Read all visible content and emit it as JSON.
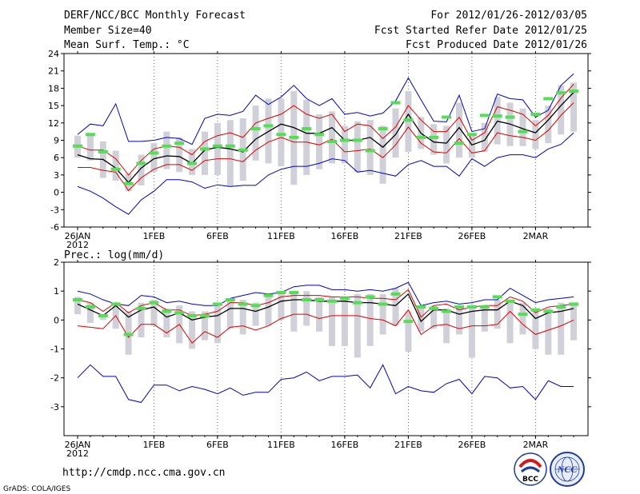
{
  "header": {
    "left": [
      "DERF/NCC/BCC Monthly Forecast",
      "Member Size=40",
      "Mean Surf. Temp.: °C"
    ],
    "right": [
      "For 2012/01/26-2012/03/05",
      "Fcst Started Refer Date 2012/01/25",
      "Fcst Produced Date 2012/01/26"
    ]
  },
  "footer": {
    "url": "http://cmdp.ncc.cma.gov.cn",
    "grads": "GrADS: COLA/IGES",
    "logo_bcc": "BCC",
    "logo_ncc": "NCC"
  },
  "colors": {
    "max_min": "#0000cc",
    "spread": "#dd0000",
    "mean": "#000000",
    "box": "#d0d0d8",
    "obs": "#55dd55"
  },
  "chart_data": [
    {
      "type": "line",
      "title": "Mean Surf. Temp.: °C",
      "ylim": [
        -6,
        24
      ],
      "yticks": [
        -6,
        -3,
        0,
        3,
        6,
        9,
        12,
        15,
        18,
        21,
        24
      ],
      "x_day_range": [
        0,
        39
      ],
      "xticks": [
        {
          "day": 0,
          "label": "26JAN",
          "sub": "2012"
        },
        {
          "day": 6,
          "label": "1FEB",
          "sub": ""
        },
        {
          "day": 11,
          "label": "6FEB",
          "sub": ""
        },
        {
          "day": 16,
          "label": "11FEB",
          "sub": ""
        },
        {
          "day": 21,
          "label": "16FEB",
          "sub": ""
        },
        {
          "day": 26,
          "label": "21FEB",
          "sub": ""
        },
        {
          "day": 31,
          "label": "26FEB",
          "sub": ""
        },
        {
          "day": 36,
          "label": "2MAR",
          "sub": ""
        }
      ],
      "series": [
        {
          "name": "max",
          "role": "max_min",
          "values": [
            10,
            11.8,
            11.5,
            15.3,
            8.8,
            8.8,
            9,
            9.5,
            9.3,
            8.3,
            12.8,
            13.5,
            13.3,
            14,
            16.8,
            15.2,
            16.5,
            18.5,
            16.2,
            15,
            16.2,
            13.5,
            13.8,
            13.2,
            13.7,
            15.8,
            19.8,
            16,
            12.3,
            12.2,
            16.8,
            10.5,
            11,
            17,
            16.2,
            16,
            13,
            14.2,
            18.5,
            20.5
          ]
        },
        {
          "name": "spread-upper",
          "role": "spread",
          "values": [
            8,
            7.3,
            7.3,
            5.8,
            3,
            5.5,
            7.5,
            8,
            7.8,
            6.5,
            8.8,
            9.8,
            10.3,
            9.5,
            12,
            12.8,
            13.5,
            15,
            13.5,
            12.8,
            13.5,
            10.5,
            11.8,
            11.5,
            9.3,
            11.3,
            15,
            12.5,
            10.5,
            10.5,
            13,
            9,
            10.3,
            14.8,
            14.2,
            13.5,
            11.5,
            13.3,
            16.3,
            18.7
          ]
        },
        {
          "name": "mean",
          "role": "mean",
          "values": [
            6.5,
            5.8,
            5.7,
            4.2,
            1.7,
            4.2,
            5.8,
            6.3,
            6.2,
            5,
            7.3,
            7.8,
            7.5,
            7,
            9.2,
            10.5,
            11.8,
            11.2,
            10.2,
            10.2,
            11.2,
            9,
            9,
            9.5,
            7.8,
            10,
            13.5,
            10.2,
            8.7,
            8.5,
            11.2,
            8.2,
            9,
            12.3,
            11.8,
            11,
            10.3,
            12.5,
            15,
            17.3
          ]
        },
        {
          "name": "spread-lower",
          "role": "spread",
          "values": [
            4.3,
            4.3,
            3.8,
            3.5,
            0.3,
            2.5,
            4,
            4.8,
            4.8,
            3.8,
            5.5,
            5.8,
            5.8,
            5.3,
            7.3,
            8.7,
            9.5,
            8.7,
            8.7,
            8.2,
            9.2,
            7,
            7.2,
            7.5,
            6,
            8.2,
            11.3,
            8.5,
            7,
            6.8,
            9.3,
            6.8,
            7.2,
            10.3,
            9.8,
            9.5,
            9,
            10.7,
            13.3,
            15.5
          ]
        },
        {
          "name": "min",
          "role": "max_min",
          "values": [
            1,
            0.2,
            -1,
            -2.5,
            -3.8,
            -1.3,
            0.2,
            2.2,
            2.2,
            1.8,
            0.7,
            1.3,
            1,
            1.2,
            1.2,
            3,
            4,
            4.5,
            4.5,
            5,
            5.8,
            5.5,
            3.5,
            3.8,
            3.3,
            2.8,
            4.8,
            5.5,
            4.5,
            4.5,
            2.8,
            5.8,
            4.5,
            6,
            6.5,
            6.5,
            6,
            7.5,
            8.3,
            10.3
          ]
        }
      ],
      "box_ranges": [
        [
          6,
          9.8
        ],
        [
          5.5,
          10.2
        ],
        [
          2.5,
          8.8
        ],
        [
          2,
          7.2
        ],
        [
          0.2,
          3.2
        ],
        [
          1.2,
          6.5
        ],
        [
          3.5,
          8.5
        ],
        [
          4,
          10.5
        ],
        [
          3.5,
          9.5
        ],
        [
          3,
          7.5
        ],
        [
          3,
          10.5
        ],
        [
          3,
          12
        ],
        [
          1,
          12.5
        ],
        [
          2,
          12.8
        ],
        [
          5.5,
          15
        ],
        [
          5,
          16.2
        ],
        [
          4.5,
          16.2
        ],
        [
          1.3,
          17.5
        ],
        [
          3,
          16
        ],
        [
          4,
          13.5
        ],
        [
          5,
          14
        ],
        [
          5,
          11.5
        ],
        [
          3.5,
          12.3
        ],
        [
          3,
          12.5
        ],
        [
          1.5,
          11.5
        ],
        [
          6,
          14.5
        ],
        [
          7,
          17.5
        ],
        [
          7.5,
          13
        ],
        [
          6.5,
          11.8
        ],
        [
          5,
          11.5
        ],
        [
          6,
          15.5
        ],
        [
          6,
          10
        ],
        [
          7,
          12
        ],
        [
          8.3,
          16.5
        ],
        [
          8,
          15.5
        ],
        [
          8,
          14.5
        ],
        [
          7.5,
          12.5
        ],
        [
          8.5,
          15
        ],
        [
          10,
          18.5
        ],
        [
          10.5,
          19
        ]
      ],
      "obs_values": [
        8,
        10,
        7,
        4,
        1.5,
        5,
        6.8,
        8,
        8.5,
        5,
        7.5,
        8,
        8,
        7.3,
        11,
        11.5,
        10,
        9.5,
        11,
        10,
        8.8,
        9,
        9,
        7.2,
        11,
        15.5,
        12.5,
        9.5,
        9.5,
        13,
        8.5,
        10,
        13.3,
        13.2,
        13,
        10.5,
        13.5,
        16.2,
        17.2,
        17.5
      ]
    },
    {
      "type": "line",
      "title": "Prec.: log(mm/d)",
      "ylim": [
        -4,
        2
      ],
      "yticks": [
        -3,
        -2,
        -1,
        0,
        1,
        2
      ],
      "x_day_range": [
        0,
        39
      ],
      "xticks": [
        {
          "day": 0,
          "label": "26JAN",
          "sub": "2012"
        },
        {
          "day": 6,
          "label": "1FEB",
          "sub": ""
        },
        {
          "day": 11,
          "label": "6FEB",
          "sub": ""
        },
        {
          "day": 16,
          "label": "11FEB",
          "sub": ""
        },
        {
          "day": 21,
          "label": "16FEB",
          "sub": ""
        },
        {
          "day": 26,
          "label": "21FEB",
          "sub": ""
        },
        {
          "day": 31,
          "label": "26FEB",
          "sub": ""
        },
        {
          "day": 36,
          "label": "2MAR",
          "sub": ""
        }
      ],
      "series": [
        {
          "name": "max",
          "role": "max_min",
          "values": [
            1,
            0.9,
            0.7,
            0.55,
            0.5,
            0.85,
            0.8,
            0.6,
            0.65,
            0.55,
            0.5,
            0.5,
            0.75,
            0.85,
            0.95,
            0.9,
            0.95,
            1.15,
            1.2,
            1.2,
            1.05,
            1.05,
            1,
            1.05,
            1,
            1.1,
            1.3,
            0.5,
            0.6,
            0.65,
            0.55,
            0.6,
            0.7,
            0.7,
            1.1,
            0.85,
            0.6,
            0.7,
            0.75,
            0.8
          ]
        },
        {
          "name": "spread-upper",
          "role": "spread",
          "values": [
            0.7,
            0.6,
            0.3,
            0.6,
            0.25,
            0.5,
            0.6,
            0.35,
            0.35,
            0.15,
            0.2,
            0.3,
            0.6,
            0.6,
            0.5,
            0.6,
            0.8,
            0.85,
            0.85,
            0.85,
            0.8,
            0.8,
            0.8,
            0.75,
            0.75,
            0.7,
            1.05,
            0.1,
            0.5,
            0.55,
            0.35,
            0.45,
            0.5,
            0.5,
            0.8,
            0.65,
            0.25,
            0.45,
            0.5,
            0.55
          ]
        },
        {
          "name": "mean",
          "role": "mean",
          "values": [
            0.55,
            0.35,
            0.15,
            0.5,
            0.1,
            0.35,
            0.45,
            0.1,
            0.25,
            0,
            0.1,
            0.15,
            0.4,
            0.4,
            0.3,
            0.45,
            0.65,
            0.7,
            0.7,
            0.65,
            0.65,
            0.65,
            0.6,
            0.6,
            0.55,
            0.5,
            0.9,
            -0.05,
            0.35,
            0.35,
            0.2,
            0.3,
            0.35,
            0.35,
            0.65,
            0.5,
            0.05,
            0.25,
            0.3,
            0.4
          ]
        },
        {
          "name": "spread-lower",
          "role": "spread",
          "values": [
            -0.2,
            -0.25,
            -0.3,
            0.15,
            -0.6,
            -0.15,
            -0.15,
            -0.45,
            -0.15,
            -0.8,
            -0.4,
            -0.6,
            -0.25,
            -0.2,
            -0.35,
            -0.2,
            0.05,
            0.2,
            0.2,
            0.05,
            0.15,
            0.15,
            0.15,
            0.05,
            0,
            -0.2,
            0.35,
            -0.5,
            -0.2,
            -0.15,
            -0.3,
            -0.2,
            -0.2,
            -0.15,
            0.3,
            -0.15,
            -0.5,
            -0.35,
            -0.2,
            0
          ]
        },
        {
          "name": "min",
          "role": "max_min",
          "values": [
            -2,
            -1.55,
            -1.95,
            -1.95,
            -2.75,
            -2.85,
            -2.25,
            -2.25,
            -2.45,
            -2.3,
            -2.4,
            -2.55,
            -2.35,
            -2.6,
            -2.5,
            -2.5,
            -2.05,
            -2,
            -1.8,
            -2.1,
            -1.95,
            -1.95,
            -1.9,
            -2.35,
            -1.55,
            -2.55,
            -2.3,
            -2.45,
            -2.5,
            -2.2,
            -2.05,
            -2.55,
            -1.95,
            -2,
            -2.35,
            -2.3,
            -2.75,
            -2.1,
            -2.3,
            -2.3
          ]
        }
      ],
      "box_ranges": [
        [
          0.2,
          0.8
        ],
        [
          -0.1,
          0.6
        ],
        [
          0,
          0.2
        ],
        [
          -0.3,
          0.6
        ],
        [
          -1.2,
          0.3
        ],
        [
          -0.6,
          0.6
        ],
        [
          -0.2,
          0.7
        ],
        [
          -0.6,
          0.4
        ],
        [
          -0.8,
          0.5
        ],
        [
          -1,
          0.3
        ],
        [
          -0.7,
          0.3
        ],
        [
          -0.8,
          0.6
        ],
        [
          -0.3,
          0.75
        ],
        [
          -0.5,
          0.7
        ],
        [
          -0.2,
          0.6
        ],
        [
          -0.2,
          0.9
        ],
        [
          0,
          1
        ],
        [
          -0.4,
          1
        ],
        [
          -0.2,
          1
        ],
        [
          -0.4,
          0.8
        ],
        [
          -0.9,
          0.8
        ],
        [
          -0.9,
          0.8
        ],
        [
          -1.3,
          0.9
        ],
        [
          -0.9,
          0.9
        ],
        [
          -0.5,
          0.9
        ],
        [
          -0.2,
          1.1
        ],
        [
          -1.1,
          0.3
        ],
        [
          -0.4,
          0.5
        ],
        [
          -0.3,
          0.5
        ],
        [
          -0.8,
          0.4
        ],
        [
          -0.5,
          0.5
        ],
        [
          -1.3,
          0.5
        ],
        [
          -0.4,
          0.5
        ],
        [
          -0.3,
          0.7
        ],
        [
          -0.8,
          0.7
        ],
        [
          -0.5,
          0.6
        ],
        [
          -1,
          0.3
        ],
        [
          -1.2,
          0.4
        ],
        [
          -1.2,
          0.6
        ],
        [
          -0.7,
          0.6
        ]
      ],
      "obs_values": [
        0.7,
        0.45,
        0.15,
        0.55,
        -0.5,
        0.4,
        0.6,
        0.3,
        0.25,
        0.15,
        0.15,
        0.55,
        0.7,
        0.55,
        0.5,
        0.85,
        0.95,
        0.95,
        0.7,
        0.7,
        0.65,
        0.75,
        0.6,
        0.8,
        0.55,
        0.9,
        -0.05,
        0.45,
        0.4,
        0.3,
        0.45,
        0.45,
        0.45,
        0.8,
        0.65,
        0.2,
        0.35,
        0.3,
        0.45,
        0.55
      ]
    }
  ]
}
